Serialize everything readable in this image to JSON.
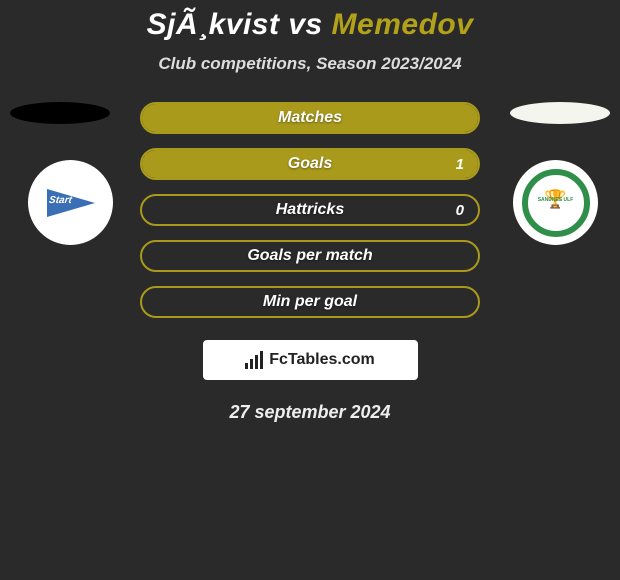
{
  "title": {
    "player1": "SjÃ¸kvist",
    "vs": " vs ",
    "player2": "Memedov"
  },
  "subtitle": "Club competitions, Season 2023/2024",
  "colors": {
    "player1_accent": "#000000",
    "player2_accent": "#b2a21a",
    "bar_border_olive": "#a99a1c",
    "bar_fill_olive": "#a99a1c",
    "background": "#2a2a2a"
  },
  "club_badges": {
    "left": {
      "name": "Start",
      "shape": "pennant",
      "color": "#3b6fb5"
    },
    "right": {
      "name": "SANDNES ULF",
      "shape": "ring",
      "color": "#2f8f4a"
    }
  },
  "stats": [
    {
      "label": "Matches",
      "p1": null,
      "p2": null,
      "fill_pct_right": 100
    },
    {
      "label": "Goals",
      "p1": null,
      "p2": "1",
      "fill_pct_right": 100
    },
    {
      "label": "Hattricks",
      "p1": null,
      "p2": "0",
      "fill_pct_right": 0
    },
    {
      "label": "Goals per match",
      "p1": null,
      "p2": null,
      "fill_pct_right": 0
    },
    {
      "label": "Min per goal",
      "p1": null,
      "p2": null,
      "fill_pct_right": 0
    }
  ],
  "attribution": "FcTables.com",
  "date": "27 september 2024"
}
